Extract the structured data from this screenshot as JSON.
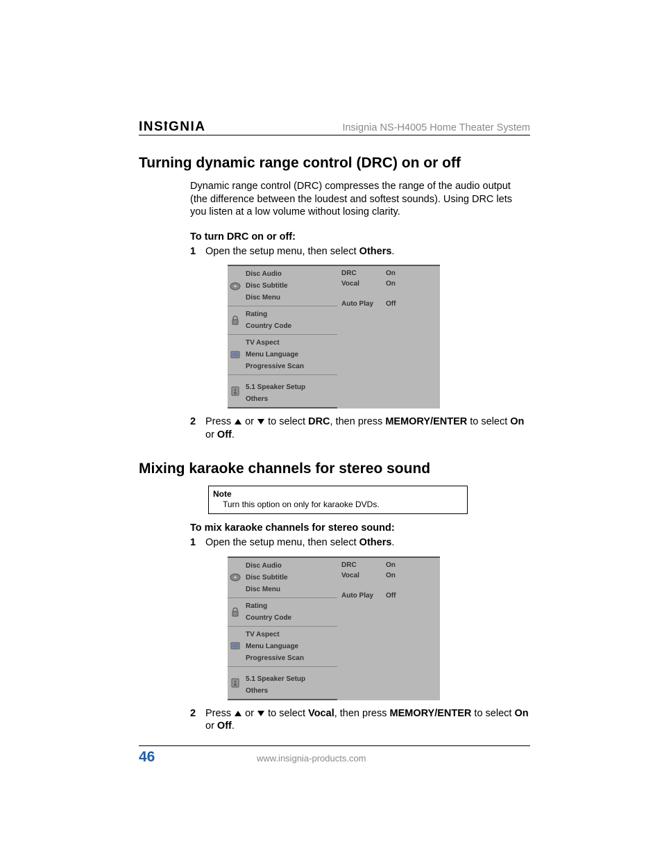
{
  "header": {
    "brand": "INSIGNIA",
    "product": "Insignia NS-H4005 Home Theater System"
  },
  "section1": {
    "title": "Turning dynamic range control (DRC) on or off",
    "intro": "Dynamic range control (DRC) compresses the range of the audio output (the difference between the loudest and softest sounds). Using DRC lets you listen at a low volume without losing clarity.",
    "task_head": "To turn DRC on or off:",
    "step1_pre": "Open the setup menu, then select ",
    "step1_bold": "Others",
    "step1_post": ".",
    "step2_a": "Press ",
    "step2_b": " or ",
    "step2_c": " to select ",
    "step2_sel": "DRC",
    "step2_d": ", then press ",
    "step2_btn": "MEMORY/ENTER",
    "step2_e": " to select ",
    "step2_on": "On",
    "step2_f": " or ",
    "step2_off": "Off",
    "step2_g": "."
  },
  "section2": {
    "title": "Mixing karaoke channels for stereo sound",
    "note_title": "Note",
    "note_body": "Turn this option on only for karaoke DVDs.",
    "task_head": "To mix karaoke channels for stereo sound:",
    "step1_pre": "Open the setup menu, then select ",
    "step1_bold": "Others",
    "step1_post": ".",
    "step2_a": "Press ",
    "step2_b": " or ",
    "step2_c": " to select ",
    "step2_sel": "Vocal",
    "step2_d": ", then press ",
    "step2_btn": "MEMORY/ENTER",
    "step2_e": " to select ",
    "step2_on": "On",
    "step2_f": " or ",
    "step2_off": "Off",
    "step2_g": "."
  },
  "menu": {
    "groups": [
      {
        "icon": "disc",
        "items": [
          "Disc Audio",
          "Disc Subtitle",
          "Disc Menu"
        ]
      },
      {
        "icon": "lock",
        "items": [
          "Rating",
          "Country Code"
        ]
      },
      {
        "icon": "tv",
        "items": [
          "TV Aspect",
          "Menu Language",
          "Progressive Scan"
        ]
      },
      {
        "icon": "speaker",
        "items": [
          "5.1 Speaker Setup",
          "Others"
        ],
        "spacer_before": true
      }
    ],
    "right": [
      {
        "label": "DRC",
        "value": "On"
      },
      {
        "label": "Vocal",
        "value": "On"
      },
      {
        "label": "Auto Play",
        "value": "Off",
        "gap": true
      }
    ],
    "colors": {
      "bg": "#b8b8b8",
      "text": "#333333",
      "border": "#555555"
    }
  },
  "footer": {
    "page": "46",
    "url": "www.insignia-products.com"
  },
  "num1": "1",
  "num2": "2"
}
